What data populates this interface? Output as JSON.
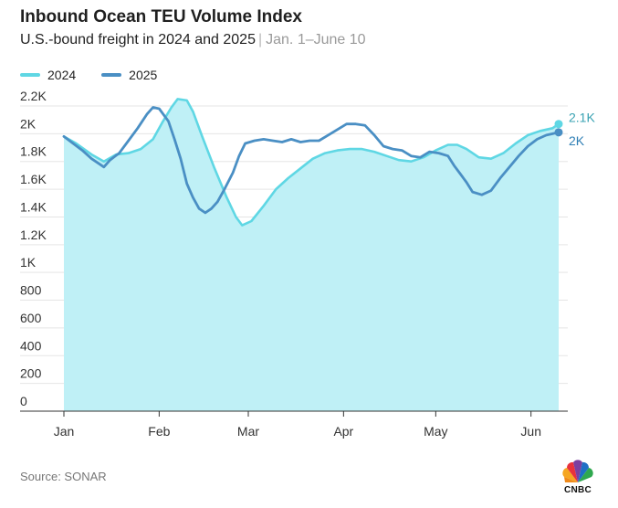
{
  "title": "Inbound Ocean TEU Volume Index",
  "subtitle": "U.S.-bound freight in 2024 and 2025",
  "subtitle_separator": "|",
  "subtitle_range": "Jan. 1–June 10",
  "source": "Source: SONAR",
  "logo_text": "CNBC",
  "colors": {
    "series_2024": "#5fd7e4",
    "series_2024_fill": "#bff0f6",
    "series_2025": "#4a8fc4",
    "gridline": "#e5e5e5",
    "axis": "#333333",
    "label_2024": "#3aa3b3",
    "label_2025": "#2f7fb5"
  },
  "chart_data": {
    "type": "area",
    "title": "Inbound Ocean TEU Volume Index",
    "xlabel": "",
    "ylabel": "",
    "ylim": [
      0,
      2200
    ],
    "yticks": [
      0,
      200,
      400,
      600,
      800,
      1000,
      1200,
      1400,
      1600,
      1800,
      2000,
      2200
    ],
    "ytick_labels": [
      "0",
      "200",
      "400",
      "600",
      "800",
      "1K",
      "1.2K",
      "1.4K",
      "1.6K",
      "1.8K",
      "2K",
      "2.2K"
    ],
    "x_unit": "day of year",
    "xlim": [
      1,
      162
    ],
    "xticks": [
      1,
      32,
      61,
      92,
      122,
      153
    ],
    "xtick_labels": [
      "Jan",
      "Feb",
      "Mar",
      "Apr",
      "May",
      "Jun"
    ],
    "grid": true,
    "legend": "top-left",
    "series": [
      {
        "name": "2024",
        "end_label": "2.1K",
        "filled": true,
        "points": [
          [
            1,
            1980
          ],
          [
            5,
            1930
          ],
          [
            10,
            1850
          ],
          [
            14,
            1800
          ],
          [
            18,
            1850
          ],
          [
            22,
            1860
          ],
          [
            26,
            1890
          ],
          [
            30,
            1960
          ],
          [
            33,
            2080
          ],
          [
            36,
            2190
          ],
          [
            38,
            2250
          ],
          [
            41,
            2240
          ],
          [
            43,
            2160
          ],
          [
            46,
            1980
          ],
          [
            50,
            1750
          ],
          [
            54,
            1540
          ],
          [
            57,
            1400
          ],
          [
            59,
            1340
          ],
          [
            62,
            1370
          ],
          [
            66,
            1480
          ],
          [
            70,
            1600
          ],
          [
            74,
            1680
          ],
          [
            78,
            1750
          ],
          [
            82,
            1820
          ],
          [
            86,
            1860
          ],
          [
            90,
            1880
          ],
          [
            94,
            1890
          ],
          [
            98,
            1890
          ],
          [
            102,
            1870
          ],
          [
            106,
            1840
          ],
          [
            110,
            1810
          ],
          [
            114,
            1800
          ],
          [
            118,
            1830
          ],
          [
            122,
            1880
          ],
          [
            126,
            1920
          ],
          [
            129,
            1920
          ],
          [
            132,
            1890
          ],
          [
            136,
            1830
          ],
          [
            140,
            1820
          ],
          [
            144,
            1860
          ],
          [
            148,
            1930
          ],
          [
            152,
            1990
          ],
          [
            156,
            2020
          ],
          [
            160,
            2040
          ],
          [
            162,
            2070
          ]
        ]
      },
      {
        "name": "2025",
        "end_label": "2K",
        "filled": false,
        "points": [
          [
            1,
            1980
          ],
          [
            4,
            1930
          ],
          [
            7,
            1880
          ],
          [
            10,
            1820
          ],
          [
            12,
            1790
          ],
          [
            14,
            1760
          ],
          [
            16,
            1810
          ],
          [
            19,
            1860
          ],
          [
            22,
            1950
          ],
          [
            25,
            2040
          ],
          [
            28,
            2140
          ],
          [
            30,
            2190
          ],
          [
            32,
            2180
          ],
          [
            35,
            2090
          ],
          [
            37,
            1960
          ],
          [
            39,
            1820
          ],
          [
            41,
            1640
          ],
          [
            43,
            1540
          ],
          [
            45,
            1460
          ],
          [
            47,
            1430
          ],
          [
            49,
            1460
          ],
          [
            51,
            1510
          ],
          [
            53,
            1590
          ],
          [
            56,
            1720
          ],
          [
            58,
            1840
          ],
          [
            60,
            1930
          ],
          [
            63,
            1950
          ],
          [
            66,
            1960
          ],
          [
            69,
            1950
          ],
          [
            72,
            1940
          ],
          [
            75,
            1960
          ],
          [
            78,
            1940
          ],
          [
            81,
            1950
          ],
          [
            84,
            1950
          ],
          [
            87,
            1990
          ],
          [
            90,
            2030
          ],
          [
            93,
            2070
          ],
          [
            96,
            2070
          ],
          [
            99,
            2060
          ],
          [
            102,
            1990
          ],
          [
            105,
            1910
          ],
          [
            108,
            1890
          ],
          [
            111,
            1880
          ],
          [
            114,
            1840
          ],
          [
            117,
            1830
          ],
          [
            120,
            1870
          ],
          [
            123,
            1860
          ],
          [
            126,
            1840
          ],
          [
            128,
            1770
          ],
          [
            130,
            1710
          ],
          [
            132,
            1650
          ],
          [
            134,
            1580
          ],
          [
            137,
            1560
          ],
          [
            140,
            1590
          ],
          [
            143,
            1680
          ],
          [
            146,
            1760
          ],
          [
            149,
            1840
          ],
          [
            152,
            1910
          ],
          [
            155,
            1960
          ],
          [
            158,
            1990
          ],
          [
            160,
            2000
          ],
          [
            162,
            2010
          ]
        ]
      }
    ]
  }
}
